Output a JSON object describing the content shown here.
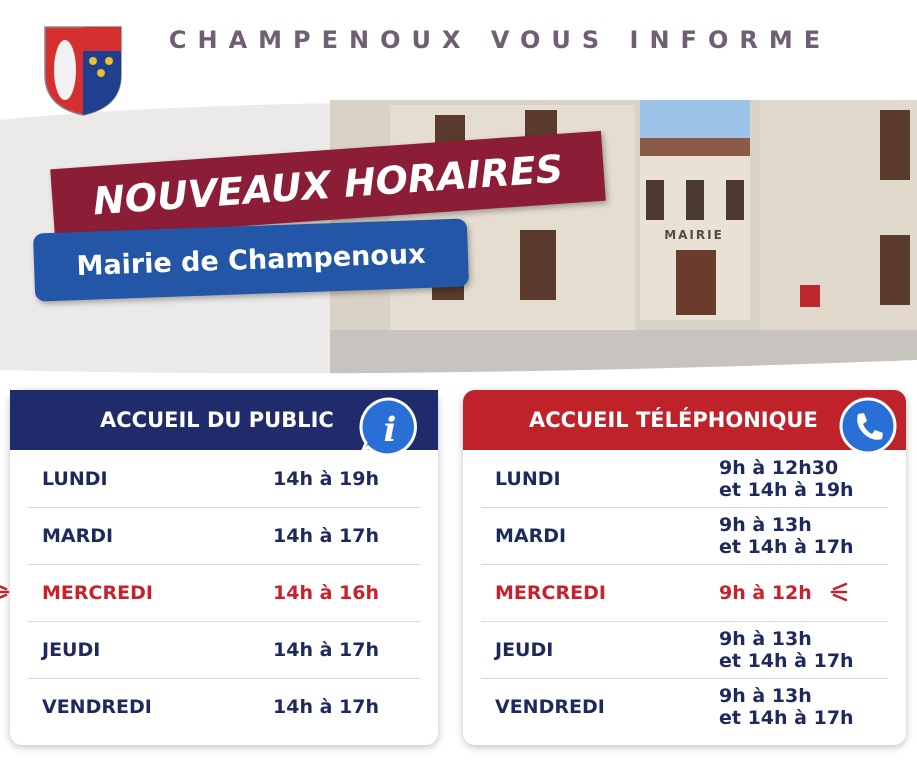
{
  "header": {
    "title": "CHAMPENOUX VOUS INFORME"
  },
  "banner": {
    "title": "NOUVEAUX HORAIRES",
    "subtitle": "Mairie de Champenoux"
  },
  "photo": {
    "sign": "MAIRIE"
  },
  "public_hours": {
    "title": "ACCUEIL DU PUBLIC",
    "highlight_row": 2,
    "rows": [
      {
        "day": "LUNDI",
        "hours": [
          "14h à 19h"
        ]
      },
      {
        "day": "MARDI",
        "hours": [
          "14h à 17h"
        ]
      },
      {
        "day": "MERCREDI",
        "hours": [
          "14h à 16h"
        ]
      },
      {
        "day": "JEUDI",
        "hours": [
          "14h à 17h"
        ]
      },
      {
        "day": "VENDREDI",
        "hours": [
          "14h à 17h"
        ]
      }
    ]
  },
  "phone_hours": {
    "title": "ACCUEIL TÉLÉPHONIQUE",
    "highlight_row": 2,
    "rows": [
      {
        "day": "LUNDI",
        "hours": [
          "9h à 12h30",
          "et 14h à 19h"
        ]
      },
      {
        "day": "MARDI",
        "hours": [
          "9h à 13h",
          "et 14h à 17h"
        ]
      },
      {
        "day": "MERCREDI",
        "hours": [
          "9h à 12h"
        ]
      },
      {
        "day": "JEUDI",
        "hours": [
          "9h à 13h",
          "et 14h à 17h"
        ]
      },
      {
        "day": "VENDREDI",
        "hours": [
          "9h à 13h",
          "et 14h à 17h"
        ]
      }
    ]
  }
}
